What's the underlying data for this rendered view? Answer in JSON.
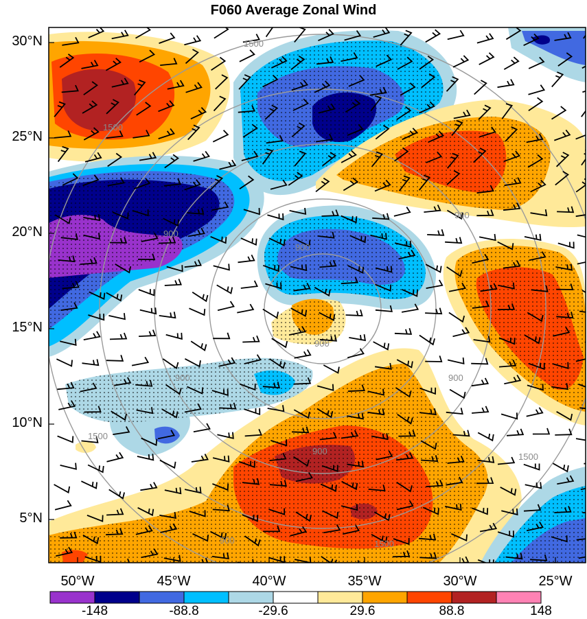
{
  "title": "F060 Average Zonal Wind",
  "lat_labels": [
    "30°N",
    "25°N",
    "20°N",
    "15°N",
    "10°N",
    "5°N"
  ],
  "lon_labels": [
    "50°W",
    "45°W",
    "40°W",
    "35°W",
    "30°W",
    "25°W"
  ],
  "colorbar": {
    "colors": [
      "#9932CC",
      "#00008B",
      "#4169E1",
      "#00BFFF",
      "#ADD8E6",
      "#FFFFFF",
      "#FFE999",
      "#FFA500",
      "#FF4500",
      "#B22222",
      "#FF82B4"
    ],
    "labels": [
      "-148",
      "-88.8",
      "-29.6",
      "29.6",
      "88.8",
      "148"
    ]
  },
  "contour_labels": [
    "1500",
    "1500",
    "900",
    "900",
    "900",
    "900",
    "900",
    "900",
    "900",
    "1500",
    "1500",
    "1500",
    "900"
  ]
}
